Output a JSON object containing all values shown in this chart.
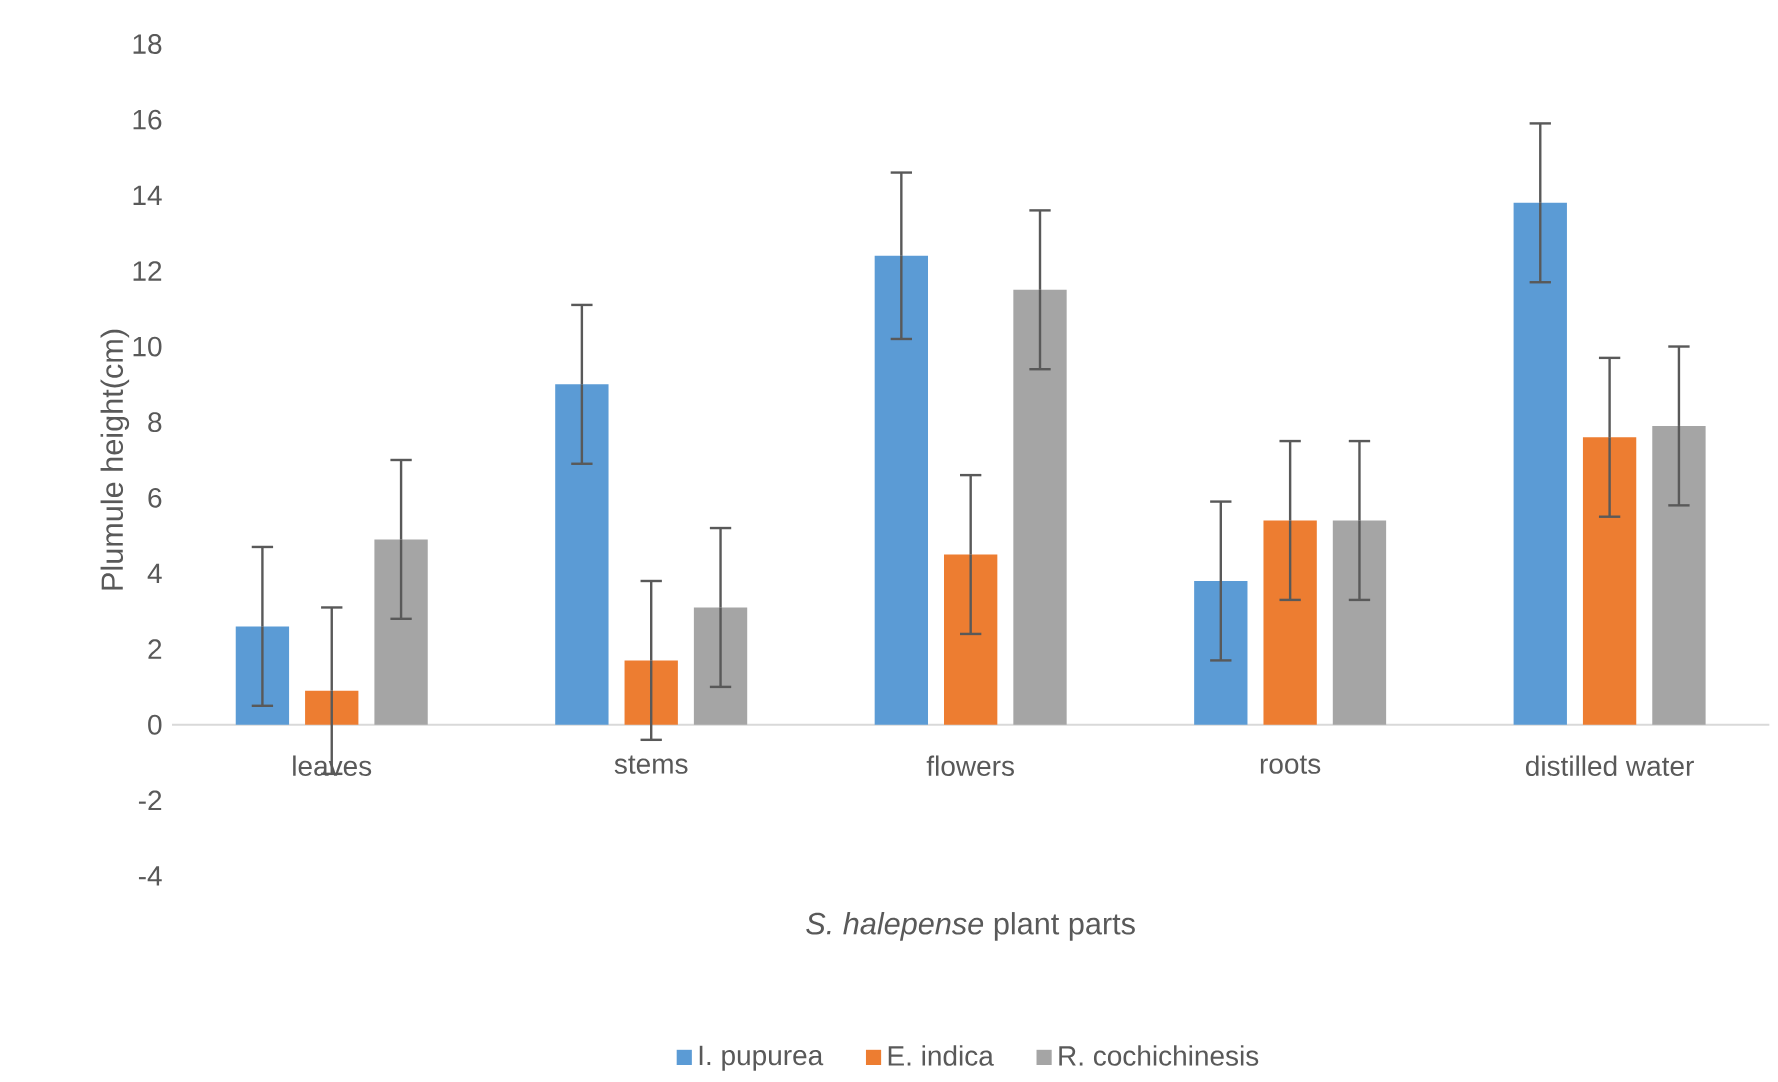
{
  "chart_data": {
    "type": "bar",
    "xlabel": "*S. halepense* plant parts",
    "ylabel": "Plumule height(cm)",
    "categories": [
      "leaves",
      "stems",
      "flowers",
      "roots",
      "distilled water"
    ],
    "series": [
      {
        "name": "I. pupurea",
        "color": "#5b9bd5",
        "values": [
          2.6,
          9.0,
          12.4,
          3.8,
          13.8
        ],
        "errors": [
          2.1,
          2.1,
          2.2,
          2.1,
          2.1
        ]
      },
      {
        "name": "E. indica",
        "color": "#ed7d31",
        "values": [
          0.9,
          1.7,
          4.5,
          5.4,
          7.6
        ],
        "errors": [
          2.2,
          2.1,
          2.1,
          2.1,
          2.1
        ]
      },
      {
        "name": "R. cochichinesis",
        "color": "#a5a5a5",
        "values": [
          4.9,
          3.1,
          11.5,
          5.4,
          7.9
        ],
        "errors": [
          2.1,
          2.1,
          2.1,
          2.1,
          2.1
        ]
      }
    ],
    "ylim": [
      -4,
      18
    ],
    "yticks": [
      -4,
      -2,
      0,
      2,
      4,
      6,
      8,
      10,
      12,
      14,
      16,
      18
    ],
    "grid": false,
    "legend": "bottom"
  }
}
